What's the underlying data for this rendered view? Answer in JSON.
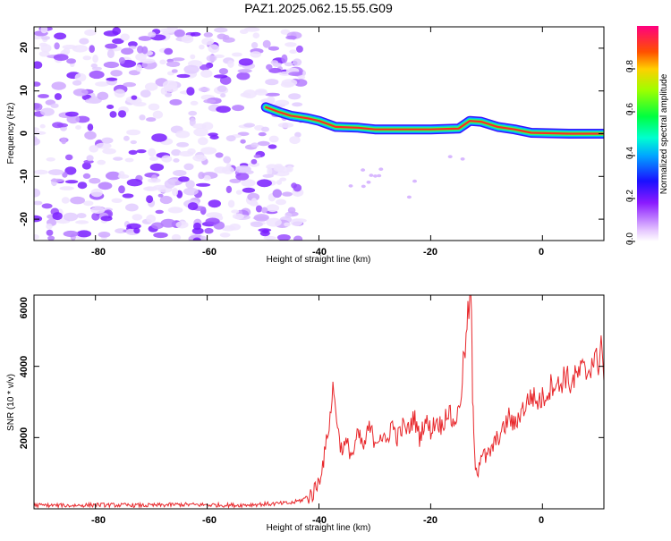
{
  "title": "PAZ1.2025.062.15.55.G09",
  "chart_data": [
    {
      "type": "heatmap",
      "xlabel": "Height of straight line (km)",
      "ylabel": "Frequency (Hz)",
      "xlim": [
        -91,
        11
      ],
      "ylim": [
        -25,
        25
      ],
      "xticks": [
        "-80",
        "-60",
        "-40",
        "-20",
        "0"
      ],
      "yticks": [
        "-20",
        "-10",
        "0",
        "10",
        "20"
      ],
      "colorbar": {
        "label": "Normalized spectral amplitude",
        "range": [
          0,
          1
        ],
        "ticks": [
          "0.0",
          "0.2",
          "0.4",
          "0.6",
          "0.8"
        ]
      },
      "ridge": {
        "description_points": [
          {
            "x": -49.5,
            "y": 6.2
          },
          {
            "x": -47,
            "y": 5.0
          },
          {
            "x": -45,
            "y": 4.2
          },
          {
            "x": -42,
            "y": 3.6
          },
          {
            "x": -40,
            "y": 3.0
          },
          {
            "x": -37,
            "y": 1.6
          },
          {
            "x": -33,
            "y": 1.4
          },
          {
            "x": -30,
            "y": 1.0
          },
          {
            "x": -25,
            "y": 1.0
          },
          {
            "x": -20,
            "y": 1.0
          },
          {
            "x": -15,
            "y": 1.2
          },
          {
            "x": -13,
            "y": 3.0
          },
          {
            "x": -11,
            "y": 2.8
          },
          {
            "x": -8,
            "y": 1.6
          },
          {
            "x": -5,
            "y": 1.0
          },
          {
            "x": -2,
            "y": 0.2
          },
          {
            "x": 5,
            "y": 0.0
          },
          {
            "x": 11,
            "y": 0.0
          }
        ],
        "noise_region_x": [
          -91,
          -43
        ]
      }
    },
    {
      "type": "line",
      "xlabel": "Height of straight line (km)",
      "ylabel": "SNR (10 * v/v)",
      "xlim": [
        -91,
        11
      ],
      "ylim": [
        0,
        6000
      ],
      "xticks": [
        "-80",
        "-60",
        "-40",
        "-20",
        "0"
      ],
      "yticks": [
        "2000",
        "4000",
        "6000"
      ],
      "color": "#e8262a",
      "series": [
        {
          "x": [
            -91,
            -85,
            -80,
            -75,
            -70,
            -65,
            -60,
            -55,
            -50,
            -45,
            -43,
            -41,
            -40,
            -39,
            -38,
            -37.5,
            -37,
            -36.5,
            -36,
            -35,
            -34,
            -33,
            -32,
            -31,
            -30,
            -29,
            -28,
            -27,
            -26,
            -25,
            -24,
            -23,
            -22,
            -21,
            -20,
            -19,
            -18,
            -17,
            -16,
            -15,
            -14.5,
            -14,
            -13.5,
            -13,
            -12.7,
            -12.5,
            -12.3,
            -12,
            -11.5,
            -11,
            -10,
            -9,
            -8,
            -7,
            -6,
            -5,
            -4,
            -3,
            -2,
            -1,
            0,
            1,
            2,
            3,
            4,
            5,
            6,
            7,
            8,
            9,
            10,
            10.5,
            11
          ],
          "y": [
            100,
            90,
            110,
            100,
            95,
            120,
            110,
            100,
            130,
            160,
            250,
            450,
            800,
            1500,
            2600,
            3350,
            2900,
            2100,
            1700,
            1800,
            1500,
            2100,
            1700,
            2300,
            1900,
            2100,
            1800,
            2400,
            2000,
            2300,
            2200,
            2600,
            2000,
            2500,
            2200,
            2500,
            2300,
            2800,
            2400,
            2700,
            3400,
            4300,
            5000,
            6000,
            5400,
            3200,
            2000,
            1300,
            1100,
            1600,
            1400,
            1700,
            2000,
            2200,
            2600,
            2300,
            2700,
            2900,
            3200,
            3000,
            3100,
            3300,
            3600,
            3400,
            3800,
            3500,
            3700,
            3900,
            3800,
            4200,
            4100,
            4800,
            3600
          ]
        }
      ]
    }
  ]
}
